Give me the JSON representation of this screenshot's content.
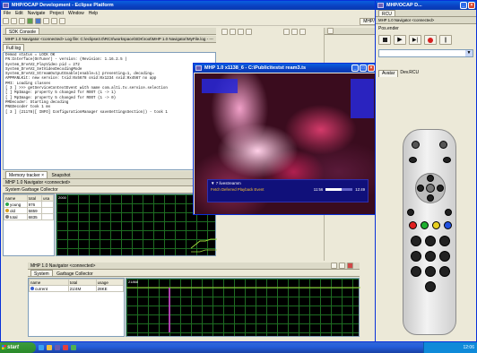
{
  "eclipse": {
    "title": "MHP/OCAP Development - Eclipse Platform",
    "menu": [
      "File",
      "Edit",
      "Navigate",
      "Project",
      "Window",
      "Help"
    ],
    "perspective": "MHP/OCAP D...",
    "sdk_tab": "SDK Console",
    "navigator_header": "MHP 1.0 Navigator <connected> Log file: C:\\eclipse3.0\\RCS\\workspace\\SDK\\root\\MHP 1.0 Navigator\\MyFile.log - ---",
    "fulllog_label": "Full log",
    "console_lines": [
      "Demod status = LOCK OK",
      "FN:Interface(OnTuner) - version: (Revision: 1.16.2.5 )",
      "System_DrvAV2_PlayVideo pid = 272",
      "System_DrvAV2_SetVideoDecodingMode",
      "System_DrvAV2_StreamOutputEnable(enable=1) presenting=1, decoding=",
      "APPMANLKit: new service: tsid:0x5678 onid:0x1234 svid:0x4567 no app",
      "PMI: Loading classes",
      "[ 3 ] >>> getServiceContextEvent with name com.alti.tv.service.selection",
      "[ ] MpImage: property 5 changed for ROOT (1 -> 1)",
      "[ ] MpImage: property 5 changed for ROOT (1 -> 0)",
      "PMDecoder: Starting decoding",
      "PNGDecoder took 1 ms",
      "[ 3 ] (21178)[ INFO] ConfigurationManager saveSettingsSection() - took 1"
    ],
    "memory_tab": "Memory tracker",
    "snapshot_tab": "Snapshot",
    "memory_header": "MHP 1.0 Navigator <connected>",
    "gc_label": "System   Garbage Collector",
    "memory_columns": [
      "name",
      "total",
      "usa"
    ],
    "memory_rows": [
      {
        "name": "young",
        "total": "976",
        "color": "#2ea84a"
      },
      {
        "name": "old",
        "total": "5859",
        "color": "#d8a021"
      },
      {
        "name": "total",
        "total": "6835",
        "color": "#7a7a7a"
      }
    ],
    "graph_top_value": "2000"
  },
  "bottom_panel": {
    "header": "MHP 1.0 Navigator <connected>",
    "tabs": [
      "System",
      "Garbage Collector"
    ],
    "columns": [
      "name",
      "total",
      "usage"
    ],
    "rows": [
      {
        "name": "current",
        "total": "21/4M",
        "usage": "28KE",
        "color": "#3a5fd0"
      }
    ],
    "graph_top_value": "21868"
  },
  "video_window": {
    "title": "MHP 1.0 x1138_6 - C:\\Public\\testst ream3.ts",
    "channel_label": "7 livestreamm",
    "status_text": "Fetch Deferred Playback Event",
    "time_start": "11:56",
    "time_end": "12:49"
  },
  "right_window": {
    "title": "MHP/OCAP D...",
    "rcu_label": "RCU",
    "header": "MHP 1.0 Navigator <connected>",
    "pos_label": "Pos.ender",
    "tabs": [
      "Avatar",
      "Dev.RCU"
    ]
  },
  "taskbar": {
    "start": "start",
    "clock": "12:06"
  },
  "colors": {
    "graph_line": "#9ed83a",
    "spike": "#e040e0",
    "desktop": "#3a6ea5"
  }
}
